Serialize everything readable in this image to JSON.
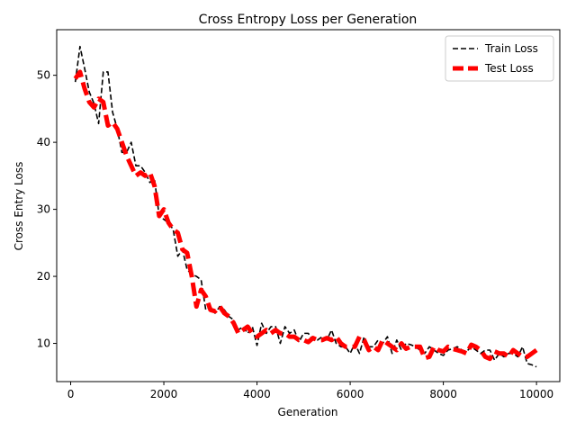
{
  "chart_data": {
    "type": "line",
    "title": "Cross Entropy Loss per Generation",
    "xlabel": "Generation",
    "ylabel": "Cross Entry Loss",
    "xlim": [
      -300,
      10500
    ],
    "ylim": [
      4.3,
      56.8
    ],
    "xticks": [
      0,
      2000,
      4000,
      6000,
      8000,
      10000
    ],
    "yticks": [
      10,
      20,
      30,
      40,
      50
    ],
    "legend": "top-right",
    "grid": false,
    "series": [
      {
        "name": "Train Loss",
        "color": "#000000",
        "style": "dashed",
        "x": [
          100,
          200,
          300,
          400,
          500,
          600,
          700,
          800,
          900,
          1000,
          1100,
          1200,
          1300,
          1400,
          1500,
          1600,
          1700,
          1800,
          1900,
          2000,
          2100,
          2200,
          2300,
          2400,
          2500,
          2600,
          2700,
          2800,
          2900,
          3000,
          3100,
          3200,
          3300,
          3400,
          3500,
          3600,
          3700,
          3800,
          3900,
          4000,
          4100,
          4200,
          4300,
          4400,
          4500,
          4600,
          4700,
          4800,
          4900,
          5000,
          5100,
          5200,
          5300,
          5400,
          5500,
          5600,
          5700,
          5800,
          5900,
          6000,
          6100,
          6200,
          6300,
          6400,
          6500,
          6600,
          6700,
          6800,
          6900,
          7000,
          7100,
          7200,
          7300,
          7400,
          7500,
          7600,
          7700,
          7800,
          7900,
          8000,
          8100,
          8200,
          8300,
          8400,
          8500,
          8600,
          8700,
          8800,
          8900,
          9000,
          9100,
          9200,
          9300,
          9400,
          9500,
          9600,
          9700,
          9800,
          9900,
          10000
        ],
        "y": [
          49.0,
          54.3,
          51.0,
          47.5,
          45.8,
          42.8,
          50.5,
          50.5,
          44.5,
          42.0,
          38.5,
          38.5,
          40.0,
          36.5,
          36.5,
          35.5,
          34.0,
          34.5,
          29.0,
          28.5,
          28.0,
          27.0,
          23.0,
          24.0,
          21.0,
          20.3,
          20.0,
          19.5,
          15.0,
          15.5,
          14.5,
          15.5,
          15.0,
          14.0,
          13.5,
          12.0,
          12.5,
          11.5,
          12.5,
          9.7,
          13.0,
          11.5,
          12.5,
          12.5,
          10.0,
          12.5,
          11.5,
          12.0,
          10.2,
          11.5,
          11.5,
          10.5,
          10.5,
          11.0,
          10.5,
          12.0,
          10.0,
          9.5,
          9.5,
          8.5,
          10.0,
          8.5,
          11.0,
          9.5,
          9.5,
          10.5,
          10.0,
          11.0,
          8.5,
          10.5,
          9.0,
          10.0,
          9.8,
          9.5,
          9.0,
          8.5,
          9.5,
          9.0,
          8.5,
          8.2,
          9.0,
          9.2,
          9.5,
          9.0,
          8.8,
          9.5,
          9.0,
          8.5,
          9.0,
          9.0,
          7.5,
          8.5,
          8.0,
          8.5,
          8.5,
          8.0,
          9.5,
          7.0,
          6.8,
          6.5
        ]
      },
      {
        "name": "Test Loss",
        "color": "#ff0000",
        "style": "dashed",
        "x": [
          100,
          200,
          300,
          400,
          500,
          600,
          700,
          800,
          900,
          1000,
          1100,
          1200,
          1300,
          1400,
          1500,
          1600,
          1700,
          1800,
          1900,
          2000,
          2100,
          2200,
          2300,
          2400,
          2500,
          2600,
          2700,
          2800,
          2900,
          3000,
          3100,
          3200,
          3300,
          3400,
          3500,
          3600,
          3700,
          3800,
          3900,
          4000,
          4100,
          4200,
          4300,
          4400,
          4500,
          4600,
          4700,
          4800,
          4900,
          5000,
          5100,
          5200,
          5300,
          5400,
          5500,
          5600,
          5700,
          5800,
          5900,
          6000,
          6100,
          6200,
          6300,
          6400,
          6500,
          6600,
          6700,
          6800,
          6900,
          7000,
          7100,
          7200,
          7300,
          7400,
          7500,
          7600,
          7700,
          7800,
          7900,
          8000,
          8100,
          8200,
          8300,
          8400,
          8500,
          8600,
          8700,
          8800,
          8900,
          9000,
          9100,
          9200,
          9300,
          9400,
          9500,
          9600,
          9700,
          9800,
          9900,
          10000
        ],
        "y": [
          49.5,
          50.5,
          48.0,
          46.0,
          45.2,
          46.5,
          46.0,
          42.5,
          43.0,
          42.0,
          40.0,
          38.0,
          36.5,
          35.0,
          35.5,
          35.0,
          35.5,
          33.5,
          29.0,
          30.0,
          28.0,
          27.0,
          26.5,
          24.0,
          23.5,
          20.0,
          15.5,
          18.0,
          17.0,
          15.0,
          14.8,
          15.5,
          14.5,
          14.0,
          13.0,
          11.5,
          12.0,
          12.5,
          11.5,
          11.0,
          11.5,
          12.0,
          11.5,
          12.0,
          11.5,
          11.5,
          11.0,
          11.0,
          10.5,
          10.5,
          10.2,
          10.8,
          10.5,
          10.5,
          10.8,
          10.5,
          11.0,
          10.0,
          9.5,
          9.5,
          9.5,
          11.0,
          10.5,
          9.0,
          9.5,
          9.0,
          10.5,
          10.0,
          9.5,
          9.0,
          10.0,
          9.2,
          9.5,
          9.5,
          9.5,
          7.8,
          8.0,
          9.5,
          9.0,
          8.8,
          9.5,
          9.2,
          9.0,
          8.8,
          8.5,
          9.8,
          9.5,
          9.0,
          8.0,
          7.7,
          8.8,
          8.5,
          8.5,
          8.0,
          9.0,
          8.5,
          8.0,
          8.0,
          8.5,
          9.0
        ]
      }
    ]
  }
}
